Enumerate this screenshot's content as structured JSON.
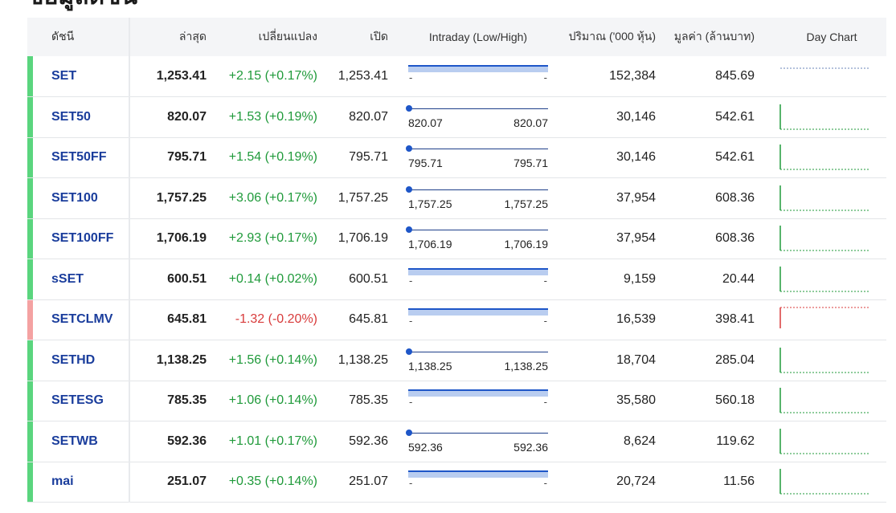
{
  "page": {
    "title": "ข้อมูลดัชนี"
  },
  "colors": {
    "up": "#1f9a3a",
    "down": "#d83b3b",
    "index_name": "#1a3d9c",
    "range_bar": "#1e56c8",
    "range_fill": "#b9cdf0"
  },
  "headers": {
    "index": "ดัชนี",
    "last": "ล่าสุด",
    "change": "เปลี่ยนแปลง",
    "open": "เปิด",
    "intraday": "Intraday (Low/High)",
    "volume": "ปริมาณ ('000 หุ้น)",
    "value": "มูลค่า (ล้านบาท)",
    "day_chart": "Day Chart"
  },
  "rows": [
    {
      "name": "SET",
      "last": "1,253.41",
      "change": "+2.15 (+0.17%)",
      "direction": "up",
      "open": "1,253.41",
      "low": "-",
      "high": "-",
      "volume": "152,384",
      "value": "845.69"
    },
    {
      "name": "SET50",
      "last": "820.07",
      "change": "+1.53 (+0.19%)",
      "direction": "up",
      "open": "820.07",
      "low": "820.07",
      "high": "820.07",
      "volume": "30,146",
      "value": "542.61"
    },
    {
      "name": "SET50FF",
      "last": "795.71",
      "change": "+1.54 (+0.19%)",
      "direction": "up",
      "open": "795.71",
      "low": "795.71",
      "high": "795.71",
      "volume": "30,146",
      "value": "542.61"
    },
    {
      "name": "SET100",
      "last": "1,757.25",
      "change": "+3.06 (+0.17%)",
      "direction": "up",
      "open": "1,757.25",
      "low": "1,757.25",
      "high": "1,757.25",
      "volume": "37,954",
      "value": "608.36"
    },
    {
      "name": "SET100FF",
      "last": "1,706.19",
      "change": "+2.93 (+0.17%)",
      "direction": "up",
      "open": "1,706.19",
      "low": "1,706.19",
      "high": "1,706.19",
      "volume": "37,954",
      "value": "608.36"
    },
    {
      "name": "sSET",
      "last": "600.51",
      "change": "+0.14 (+0.02%)",
      "direction": "up",
      "open": "600.51",
      "low": "-",
      "high": "-",
      "volume": "9,159",
      "value": "20.44"
    },
    {
      "name": "SETCLMV",
      "last": "645.81",
      "change": "-1.32 (-0.20%)",
      "direction": "down",
      "open": "645.81",
      "low": "-",
      "high": "-",
      "volume": "16,539",
      "value": "398.41"
    },
    {
      "name": "SETHD",
      "last": "1,138.25",
      "change": "+1.56 (+0.14%)",
      "direction": "up",
      "open": "1,138.25",
      "low": "1,138.25",
      "high": "1,138.25",
      "volume": "18,704",
      "value": "285.04"
    },
    {
      "name": "SETESG",
      "last": "785.35",
      "change": "+1.06 (+0.14%)",
      "direction": "up",
      "open": "785.35",
      "low": "-",
      "high": "-",
      "volume": "35,580",
      "value": "560.18"
    },
    {
      "name": "SETWB",
      "last": "592.36",
      "change": "+1.01 (+0.17%)",
      "direction": "up",
      "open": "592.36",
      "low": "592.36",
      "high": "592.36",
      "volume": "8,624",
      "value": "119.62"
    },
    {
      "name": "mai",
      "last": "251.07",
      "change": "+0.35 (+0.14%)",
      "direction": "up",
      "open": "251.07",
      "low": "-",
      "high": "-",
      "volume": "20,724",
      "value": "11.56"
    }
  ]
}
